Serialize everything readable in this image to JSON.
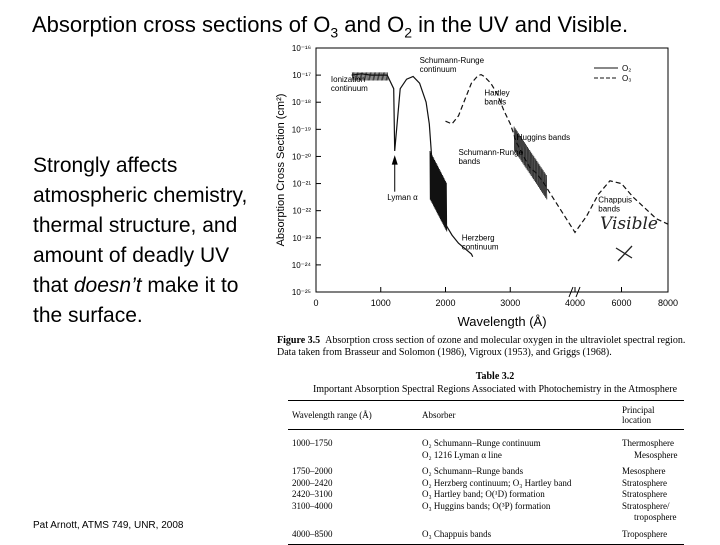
{
  "slide": {
    "title": {
      "main": "Absorption cross sections of O",
      "sub1": "3",
      "mid": " and O",
      "sub2": "2",
      "end": " in the UV and Visible."
    },
    "body": {
      "part1": "Strongly affects atmospheric chemistry, thermal structure, and amount of deadly UV that ",
      "italic": "doesn’t",
      "part2": " make it to the surface."
    },
    "footer": "Pat Arnott, ATMS 749, UNR, 2008",
    "handwriting": "Visible"
  },
  "figure": {
    "caption_label": "Figure 3.5",
    "caption_text": "Absorption cross section of ozone and molecular oxygen in the ultraviolet spectral region. Data taken from Brasseur and Solomon (1986), Vigroux (1953), and Griggs (1968)."
  },
  "chart_data": {
    "type": "line",
    "xlabel": "Wavelength (Å)",
    "ylabel": "Absorption Cross Section (cm²)",
    "xlim": [
      0,
      8000
    ],
    "ylim_log10": [
      -25,
      -16
    ],
    "y_scale": "log",
    "x_ticks": [
      "0",
      "1000",
      "2000",
      "3000",
      "4000",
      "6000",
      "8000"
    ],
    "y_ticks": [
      "10⁻¹⁶",
      "10⁻¹⁷",
      "10⁻¹⁸",
      "10⁻¹⁹",
      "10⁻²⁰",
      "10⁻²¹",
      "10⁻²²",
      "10⁻²³",
      "10⁻²⁴",
      "10⁻²⁵"
    ],
    "legend": [
      "O₂",
      "O₃"
    ],
    "legend_position": "top-right",
    "annotations": [
      "Ionization continuum",
      "Schumann-Runge continuum",
      "Hartley bands",
      "Schumann-Runge bands",
      "Huggins bands",
      "Lyman α",
      "Chappuis bands",
      "Herzberg continuum"
    ],
    "series": [
      {
        "name": "O₂",
        "style": "solid",
        "x": [
          550,
          700,
          850,
          1000,
          1100,
          1200,
          1216,
          1300,
          1400,
          1500,
          1600,
          1700,
          1750,
          1800,
          1850,
          1900,
          1950,
          2000,
          2100,
          2200,
          2300,
          2400,
          2420
        ],
        "log10_y": [
          -17.0,
          -16.95,
          -17.0,
          -17.0,
          -17.0,
          -17.5,
          -19.8,
          -17.5,
          -17.15,
          -17.05,
          -17.3,
          -18.0,
          -18.8,
          -20.5,
          -21.3,
          -21.7,
          -22.2,
          -22.5,
          -22.9,
          -23.2,
          -23.4,
          -23.6,
          -23.7
        ]
      },
      {
        "name": "O₃",
        "style": "dashed",
        "x": [
          2000,
          2100,
          2200,
          2300,
          2400,
          2500,
          2550,
          2600,
          2700,
          2800,
          2900,
          3000,
          3100,
          3200,
          3300,
          3400,
          3500,
          3600,
          4000,
          4500,
          5000,
          5500,
          6000,
          6500,
          7000,
          7500,
          8000
        ],
        "log10_y": [
          -18.7,
          -18.8,
          -18.5,
          -17.9,
          -17.3,
          -17.02,
          -16.98,
          -17.05,
          -17.3,
          -17.7,
          -18.3,
          -18.8,
          -19.5,
          -20.0,
          -20.4,
          -20.6,
          -20.9,
          -21.3,
          -22.8,
          -22.2,
          -21.4,
          -20.9,
          -21.0,
          -21.5,
          -21.9,
          -22.3,
          -22.5
        ]
      }
    ]
  },
  "table": {
    "number": "Table 3.2",
    "title": "Important Absorption Spectral Regions Associated with Photochemistry in the Atmosphere",
    "headers": [
      "Wavelength range (Å)",
      "Absorber",
      "Principal location"
    ],
    "rows": [
      {
        "range": "1000–1750",
        "absorber": [
          "O₂ Schumann–Runge continuum",
          "O₂ 1216 Lyman α line"
        ],
        "location": [
          "Thermosphere",
          "Mesosphere"
        ]
      },
      {
        "range": "1750–2000",
        "absorber": [
          "O₂ Schumann–Runge bands"
        ],
        "location": [
          "Mesosphere"
        ]
      },
      {
        "range": "2000–2420",
        "absorber": [
          "O₂ Herzberg continuum; O₃ Hartley band"
        ],
        "location": [
          "Stratosphere"
        ]
      },
      {
        "range": "2420–3100",
        "absorber": [
          "O₃ Hartley band; O(¹D) formation"
        ],
        "location": [
          "Stratosphere"
        ]
      },
      {
        "range": "3100–4000",
        "absorber": [
          "O₃ Huggins bands; O(³P) formation"
        ],
        "location": [
          "Stratosphere/",
          "troposphere"
        ]
      },
      {
        "range": "4000–8500",
        "absorber": [
          "O₃ Chappuis bands"
        ],
        "location": [
          "Troposphere"
        ]
      }
    ]
  }
}
